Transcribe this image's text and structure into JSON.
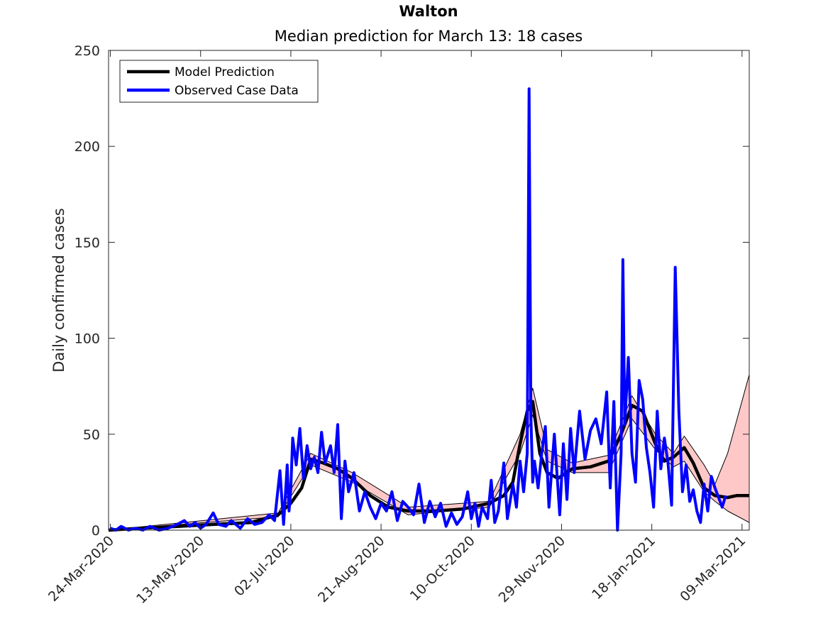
{
  "chart_data": {
    "type": "line",
    "title": "Walton",
    "subtitle": "Median prediction for March 13: 18 cases",
    "xlabel": "",
    "ylabel": "Daily confirmed cases",
    "xlim": [
      "2020-03-23",
      "2021-03-13"
    ],
    "ylim": [
      0,
      250
    ],
    "yticks": [
      0,
      50,
      100,
      150,
      200,
      250
    ],
    "xticks": [
      "24-Mar-2020",
      "13-May-2020",
      "02-Jul-2020",
      "21-Aug-2020",
      "10-Oct-2020",
      "29-Nov-2020",
      "18-Jan-2021",
      "09-Mar-2021"
    ],
    "xtick_dates": [
      "2020-03-24",
      "2020-05-13",
      "2020-07-02",
      "2020-08-21",
      "2020-10-10",
      "2020-11-29",
      "2021-01-18",
      "2021-03-09"
    ],
    "grid": false,
    "legend_position": "top-left",
    "series": [
      {
        "name": "Model Prediction",
        "color": "#000000",
        "x": [
          "2020-03-23",
          "2020-04-10",
          "2020-05-01",
          "2020-05-20",
          "2020-06-10",
          "2020-06-25",
          "2020-07-02",
          "2020-07-08",
          "2020-07-13",
          "2020-07-20",
          "2020-07-28",
          "2020-08-05",
          "2020-08-15",
          "2020-08-25",
          "2020-09-05",
          "2020-09-20",
          "2020-10-05",
          "2020-10-20",
          "2020-10-28",
          "2020-11-02",
          "2020-11-06",
          "2020-11-10",
          "2020-11-13",
          "2020-11-17",
          "2020-11-21",
          "2020-11-27",
          "2020-12-05",
          "2020-12-15",
          "2020-12-25",
          "2021-01-01",
          "2021-01-07",
          "2021-01-13",
          "2021-01-20",
          "2021-01-25",
          "2021-01-30",
          "2021-02-05",
          "2021-02-10",
          "2021-02-16",
          "2021-02-22",
          "2021-03-01",
          "2021-03-06",
          "2021-03-13"
        ],
        "values": [
          0,
          1,
          2,
          3,
          4,
          8,
          14,
          22,
          37,
          35,
          32,
          27,
          18,
          12,
          10,
          10,
          11,
          14,
          18,
          25,
          45,
          62,
          67,
          40,
          30,
          27,
          32,
          33,
          36,
          50,
          65,
          62,
          45,
          36,
          38,
          43,
          35,
          22,
          18,
          17,
          18,
          18
        ]
      },
      {
        "name": "",
        "color": "#000000",
        "x": [
          "2020-03-23",
          "2020-06-25",
          "2020-07-13",
          "2020-08-05",
          "2020-09-05",
          "2020-10-20",
          "2020-11-06",
          "2020-11-13",
          "2020-11-21",
          "2020-12-05",
          "2020-12-25",
          "2021-01-07",
          "2021-01-20",
          "2021-01-30",
          "2021-02-05",
          "2021-02-16",
          "2021-02-22",
          "2021-03-01",
          "2021-03-13"
        ],
        "values": [
          0,
          9,
          40,
          30,
          12,
          15,
          50,
          74,
          42,
          35,
          39,
          70,
          50,
          40,
          49,
          34,
          24,
          40,
          81
        ]
      },
      {
        "name": "",
        "color": "#000000",
        "x": [
          "2020-03-23",
          "2020-06-25",
          "2020-07-13",
          "2020-08-05",
          "2020-09-05",
          "2020-10-20",
          "2020-11-06",
          "2020-11-13",
          "2020-11-21",
          "2020-12-05",
          "2020-12-25",
          "2021-01-07",
          "2021-01-20",
          "2021-01-30",
          "2021-02-05",
          "2021-02-16",
          "2021-02-22",
          "2021-03-01",
          "2021-03-13"
        ],
        "values": [
          0,
          7,
          34,
          25,
          8,
          12,
          40,
          60,
          36,
          30,
          30,
          58,
          42,
          33,
          36,
          20,
          15,
          10,
          4
        ]
      },
      {
        "name": "Observed Case Data",
        "color": "#0000ff",
        "x": [
          "2020-03-24",
          "2020-03-27",
          "2020-03-30",
          "2020-04-03",
          "2020-04-07",
          "2020-04-11",
          "2020-04-15",
          "2020-04-20",
          "2020-04-25",
          "2020-04-30",
          "2020-05-04",
          "2020-05-07",
          "2020-05-10",
          "2020-05-13",
          "2020-05-16",
          "2020-05-20",
          "2020-05-23",
          "2020-05-27",
          "2020-05-30",
          "2020-06-04",
          "2020-06-08",
          "2020-06-12",
          "2020-06-16",
          "2020-06-20",
          "2020-06-23",
          "2020-06-26",
          "2020-06-28",
          "2020-06-30",
          "2020-07-01",
          "2020-07-02",
          "2020-07-03",
          "2020-07-05",
          "2020-07-07",
          "2020-07-09",
          "2020-07-11",
          "2020-07-13",
          "2020-07-15",
          "2020-07-17",
          "2020-07-19",
          "2020-07-21",
          "2020-07-24",
          "2020-07-26",
          "2020-07-28",
          "2020-07-30",
          "2020-08-01",
          "2020-08-03",
          "2020-08-06",
          "2020-08-09",
          "2020-08-12",
          "2020-08-15",
          "2020-08-18",
          "2020-08-21",
          "2020-08-24",
          "2020-08-27",
          "2020-08-30",
          "2020-09-02",
          "2020-09-05",
          "2020-09-08",
          "2020-09-11",
          "2020-09-14",
          "2020-09-17",
          "2020-09-20",
          "2020-09-23",
          "2020-09-26",
          "2020-09-29",
          "2020-10-02",
          "2020-10-05",
          "2020-10-08",
          "2020-10-10",
          "2020-10-12",
          "2020-10-14",
          "2020-10-16",
          "2020-10-19",
          "2020-10-21",
          "2020-10-23",
          "2020-10-25",
          "2020-10-28",
          "2020-10-30",
          "2020-11-02",
          "2020-11-04",
          "2020-11-06",
          "2020-11-08",
          "2020-11-10",
          "2020-11-11",
          "2020-11-12",
          "2020-11-13",
          "2020-11-14",
          "2020-11-16",
          "2020-11-18",
          "2020-11-20",
          "2020-11-22",
          "2020-11-25",
          "2020-11-28",
          "2020-11-30",
          "2020-12-02",
          "2020-12-04",
          "2020-12-06",
          "2020-12-09",
          "2020-12-12",
          "2020-12-15",
          "2020-12-18",
          "2020-12-21",
          "2020-12-24",
          "2020-12-26",
          "2020-12-28",
          "2020-12-30",
          "2021-01-01",
          "2021-01-02",
          "2021-01-03",
          "2021-01-05",
          "2021-01-07",
          "2021-01-09",
          "2021-01-11",
          "2021-01-13",
          "2021-01-15",
          "2021-01-17",
          "2021-01-19",
          "2021-01-21",
          "2021-01-23",
          "2021-01-25",
          "2021-01-27",
          "2021-01-29",
          "2021-01-31",
          "2021-02-02",
          "2021-02-04",
          "2021-02-06",
          "2021-02-08",
          "2021-02-10",
          "2021-02-12",
          "2021-02-14",
          "2021-02-16",
          "2021-02-18",
          "2021-02-20",
          "2021-02-22",
          "2021-02-24",
          "2021-02-26",
          "2021-02-28"
        ],
        "values": [
          1,
          0,
          2,
          0,
          1,
          0,
          2,
          0,
          1,
          3,
          5,
          2,
          4,
          1,
          3,
          9,
          3,
          2,
          5,
          1,
          6,
          3,
          4,
          8,
          5,
          31,
          3,
          34,
          10,
          22,
          48,
          34,
          53,
          27,
          44,
          32,
          38,
          30,
          51,
          35,
          44,
          30,
          55,
          6,
          36,
          20,
          30,
          10,
          20,
          12,
          6,
          14,
          10,
          20,
          5,
          15,
          12,
          8,
          24,
          4,
          15,
          7,
          14,
          2,
          9,
          3,
          7,
          20,
          6,
          14,
          2,
          12,
          6,
          26,
          4,
          10,
          35,
          6,
          24,
          12,
          36,
          20,
          40,
          230,
          60,
          25,
          36,
          22,
          40,
          54,
          12,
          50,
          8,
          45,
          16,
          53,
          30,
          62,
          37,
          52,
          58,
          45,
          72,
          22,
          67,
          0,
          40,
          141,
          55,
          90,
          40,
          25,
          78,
          68,
          43,
          30,
          12,
          62,
          32,
          48,
          35,
          13,
          137,
          62,
          20,
          34,
          15,
          21,
          10,
          4,
          24,
          10,
          28,
          22,
          17,
          12,
          18
        ]
      }
    ]
  },
  "legend": {
    "items": [
      {
        "label": "Model Prediction",
        "color": "#000000"
      },
      {
        "label": "Observed Case Data",
        "color": "#0000ff"
      }
    ]
  },
  "colors": {
    "band_fill": "#ffc8c8",
    "axis": "#262626"
  }
}
